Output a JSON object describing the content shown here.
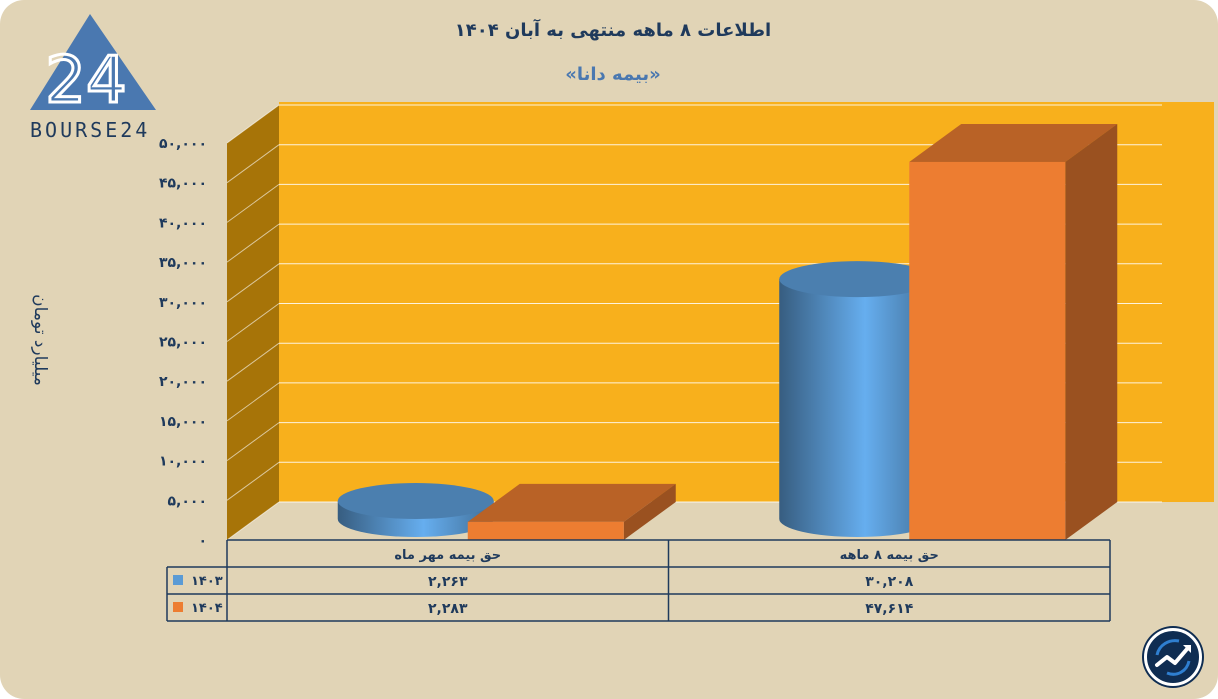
{
  "chart_data": {
    "type": "bar",
    "title": "اطلاعات ۸ ماهه منتهی به آبان ۱۴۰۴",
    "subtitle": "«بیمه دانا»",
    "ylabel": "میلیارد تومان",
    "ylim": [
      0,
      50000
    ],
    "yticks": [
      "۰",
      "۵,۰۰۰",
      "۱۰,۰۰۰",
      "۱۵,۰۰۰",
      "۲۰,۰۰۰",
      "۲۵,۰۰۰",
      "۳۰,۰۰۰",
      "۳۵,۰۰۰",
      "۴۰,۰۰۰",
      "۴۵,۰۰۰",
      "۵۰,۰۰۰"
    ],
    "categories": [
      "حق بیمه مهر ماه",
      "حق بیمه ۸ ماهه"
    ],
    "series": [
      {
        "name": "۱۴۰۳",
        "values": [
          2263,
          30208
        ],
        "labels": [
          "۲,۲۶۳",
          "۳۰,۲۰۸"
        ],
        "color": "#5b9bd5"
      },
      {
        "name": "۱۴۰۴",
        "values": [
          2283,
          47614
        ],
        "labels": [
          "۲,۲۸۳",
          "۴۷,۶۱۴"
        ],
        "color": "#ed7d31"
      }
    ],
    "grid": true,
    "legend": "table-left"
  },
  "colors": {
    "background": "#e1d4b6",
    "wall": "#f8b01c",
    "side_wall": "#a77408",
    "text": "#1f3a5c",
    "subtitle": "#4a78b0"
  },
  "logo": {
    "text": "BOURSE24",
    "mark": "24"
  }
}
